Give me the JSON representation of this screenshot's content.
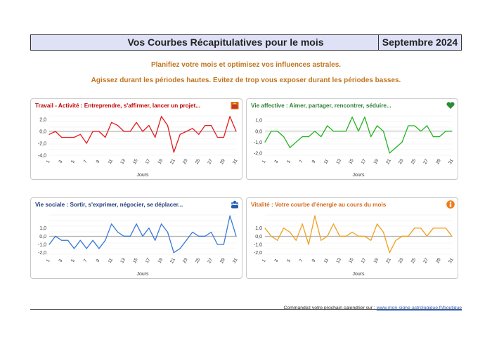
{
  "header": {
    "title": "Vos Courbes Récapitulatives pour le mois",
    "month": "Septembre 2024"
  },
  "subtitles": {
    "line1": "Planifiez votre mois et optimisez vos influences astrales.",
    "line2": "Agissez durant les périodes hautes. Evitez de trop vous exposer durant les périodes basses."
  },
  "footer": {
    "text": "Commandez votre prochain calendrier sur : ",
    "link": "www.mon-signe-astrologique.fr/boutique"
  },
  "chart_data": [
    {
      "type": "line",
      "title": "Travail - Activité : Entreprendre, s'affirmer, lancer un projet...",
      "title_color": "#c00000",
      "color": "#e41a1c",
      "icon": "briefcase-icon",
      "xlabel": "Jours",
      "yticks": [
        "2,0",
        "0,0",
        "-2,0",
        "-4,0"
      ],
      "ytick_values": [
        2,
        0,
        -2,
        -4
      ],
      "ylim": [
        -4,
        2.6
      ],
      "xticks": [
        "1",
        "3",
        "5",
        "7",
        "9",
        "11",
        "13",
        "15",
        "17",
        "19",
        "21",
        "23",
        "25",
        "27",
        "29",
        "31"
      ],
      "x": [
        1,
        2,
        3,
        4,
        5,
        6,
        7,
        8,
        9,
        10,
        11,
        12,
        13,
        14,
        15,
        16,
        17,
        18,
        19,
        20,
        21,
        22,
        23,
        24,
        25,
        26,
        27,
        28,
        29,
        30,
        31
      ],
      "values": [
        -0.5,
        0,
        -1,
        -1,
        -1,
        -0.5,
        -2,
        0,
        0,
        -1,
        1.5,
        1,
        0,
        0,
        1.5,
        0,
        1,
        -1,
        2.5,
        1,
        -3.5,
        -0.5,
        0,
        0.5,
        -0.5,
        1,
        1,
        -1,
        -1,
        2.5,
        0
      ]
    },
    {
      "type": "line",
      "title": "Vie affective : Aimer, partager, rencontrer, séduire...",
      "title_color": "#2e7d32",
      "color": "#22b322",
      "icon": "heart-icon",
      "xlabel": "Jours",
      "yticks": [
        "1,0",
        "0,0",
        "-1,0",
        "-2,0"
      ],
      "ytick_values": [
        1,
        0,
        -1,
        -2
      ],
      "ylim": [
        -2.2,
        1.4
      ],
      "xticks": [
        "1",
        "3",
        "5",
        "7",
        "9",
        "11",
        "13",
        "15",
        "17",
        "19",
        "21",
        "23",
        "25",
        "27",
        "29",
        "31"
      ],
      "x": [
        1,
        2,
        3,
        4,
        5,
        6,
        7,
        8,
        9,
        10,
        11,
        12,
        13,
        14,
        15,
        16,
        17,
        18,
        19,
        20,
        21,
        22,
        23,
        24,
        25,
        26,
        27,
        28,
        29,
        30,
        31
      ],
      "values": [
        -1,
        0,
        0,
        -0.5,
        -1.5,
        -1,
        -0.5,
        -0.5,
        0,
        -0.5,
        0.5,
        0,
        0,
        0,
        1.3,
        0,
        1.3,
        -0.5,
        0.5,
        0,
        -2,
        -1.5,
        -1,
        0.5,
        0.5,
        0,
        0.5,
        -0.5,
        -0.5,
        0,
        0
      ]
    },
    {
      "type": "line",
      "title": "Vie sociale : Sortir, s'exprimer, négocier, se déplacer...",
      "title_color": "#1f3d7a",
      "color": "#3a78d8",
      "icon": "people-icon",
      "xlabel": "Jours",
      "yticks": [
        "1,0",
        "0,0",
        "-1,0",
        "-2,0"
      ],
      "ytick_values": [
        1,
        0,
        -1,
        -2
      ],
      "ylim": [
        -2.2,
        2.6
      ],
      "xticks": [
        "1",
        "3",
        "5",
        "7",
        "9",
        "11",
        "13",
        "15",
        "17",
        "19",
        "21",
        "23",
        "25",
        "27",
        "29",
        "31"
      ],
      "x": [
        1,
        2,
        3,
        4,
        5,
        6,
        7,
        8,
        9,
        10,
        11,
        12,
        13,
        14,
        15,
        16,
        17,
        18,
        19,
        20,
        21,
        22,
        23,
        24,
        25,
        26,
        27,
        28,
        29,
        30,
        31
      ],
      "values": [
        -1,
        0,
        -0.5,
        -0.5,
        -1.5,
        -0.5,
        -1.5,
        -0.5,
        -1.5,
        -0.5,
        1.5,
        0.5,
        0,
        0,
        1.5,
        0,
        1,
        -0.5,
        1.5,
        0.5,
        -2,
        -1.5,
        -0.5,
        0.5,
        0,
        0,
        0.5,
        -1,
        -1,
        2.5,
        0
      ]
    },
    {
      "type": "line",
      "title": "Vitalité : Votre courbe d'énergie au cours du mois",
      "title_color": "#d2691e",
      "color": "#f0a020",
      "icon": "energy-icon",
      "xlabel": "Jours",
      "yticks": [
        "1,0",
        "0,0",
        "-1,0",
        "-2,0"
      ],
      "ytick_values": [
        1,
        0,
        -1,
        -2
      ],
      "ylim": [
        -2.2,
        2.6
      ],
      "xticks": [
        "1",
        "3",
        "5",
        "7",
        "9",
        "11",
        "13",
        "15",
        "17",
        "19",
        "21",
        "23",
        "25",
        "27",
        "29",
        "31"
      ],
      "x": [
        1,
        2,
        3,
        4,
        5,
        6,
        7,
        8,
        9,
        10,
        11,
        12,
        13,
        14,
        15,
        16,
        17,
        18,
        19,
        20,
        21,
        22,
        23,
        24,
        25,
        26,
        27,
        28,
        29,
        30,
        31
      ],
      "values": [
        1,
        0,
        -0.5,
        1,
        0.5,
        -0.5,
        1.5,
        -1,
        2.5,
        -0.5,
        0,
        1.5,
        0,
        0,
        0.5,
        0,
        0,
        -0.5,
        1.5,
        0.5,
        -2,
        -0.5,
        0,
        0,
        1,
        1,
        0,
        1,
        1,
        1,
        0
      ]
    }
  ]
}
